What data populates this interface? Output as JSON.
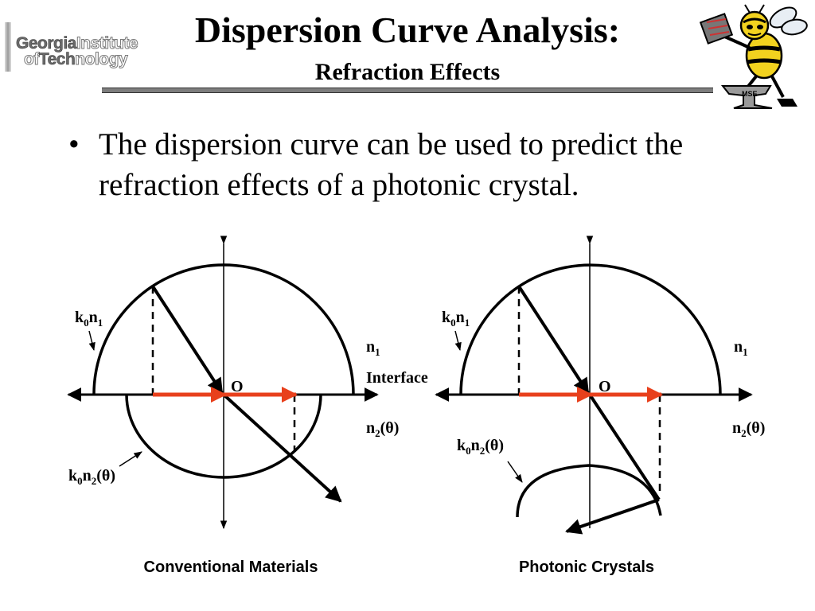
{
  "header": {
    "title": "Dispersion Curve Analysis:",
    "subtitle": "Refraction Effects"
  },
  "logo": {
    "line1_bold": "Georgia",
    "line1_outline": "Institute",
    "line2_outline_a": "of",
    "line2_bold": "Tech",
    "line2_outline_b": "nology"
  },
  "mascot": {
    "icon": "yellow-jacket-mascot-icon",
    "badge_text": "MSE"
  },
  "bullet": {
    "marker": "•",
    "text": "The dispersion curve can be used to predict the refraction effects of a photonic crystal."
  },
  "diagram_left": {
    "label_k0n1": {
      "k": "k",
      "sub0": "0",
      "n": "n",
      "sub1": "1"
    },
    "label_n1": {
      "n": "n",
      "sub": "1"
    },
    "label_interface": "Interface",
    "label_origin": "O",
    "label_n2": {
      "n": "n",
      "sub": "2",
      "theta": "(θ)"
    },
    "label_k0n2": {
      "k": "k",
      "sub0": "0",
      "n": "n",
      "sub2": "2",
      "theta": "(θ)"
    },
    "caption": "Conventional Materials"
  },
  "diagram_right": {
    "label_k0n1": {
      "k": "k",
      "sub0": "0",
      "n": "n",
      "sub1": "1"
    },
    "label_n1": {
      "n": "n",
      "sub": "1"
    },
    "label_origin": "O",
    "label_n2": {
      "n": "n",
      "sub": "2",
      "theta": "(θ)"
    },
    "label_k0n2": {
      "k": "k",
      "sub0": "0",
      "n": "n",
      "sub2": "2",
      "theta": "(θ)"
    },
    "caption": "Photonic Crystals"
  },
  "colors": {
    "vector_red": "#e8401c",
    "ink": "#000000",
    "rule_gray": "#7d7d7d",
    "mascot_yellow": "#f2d21f"
  }
}
